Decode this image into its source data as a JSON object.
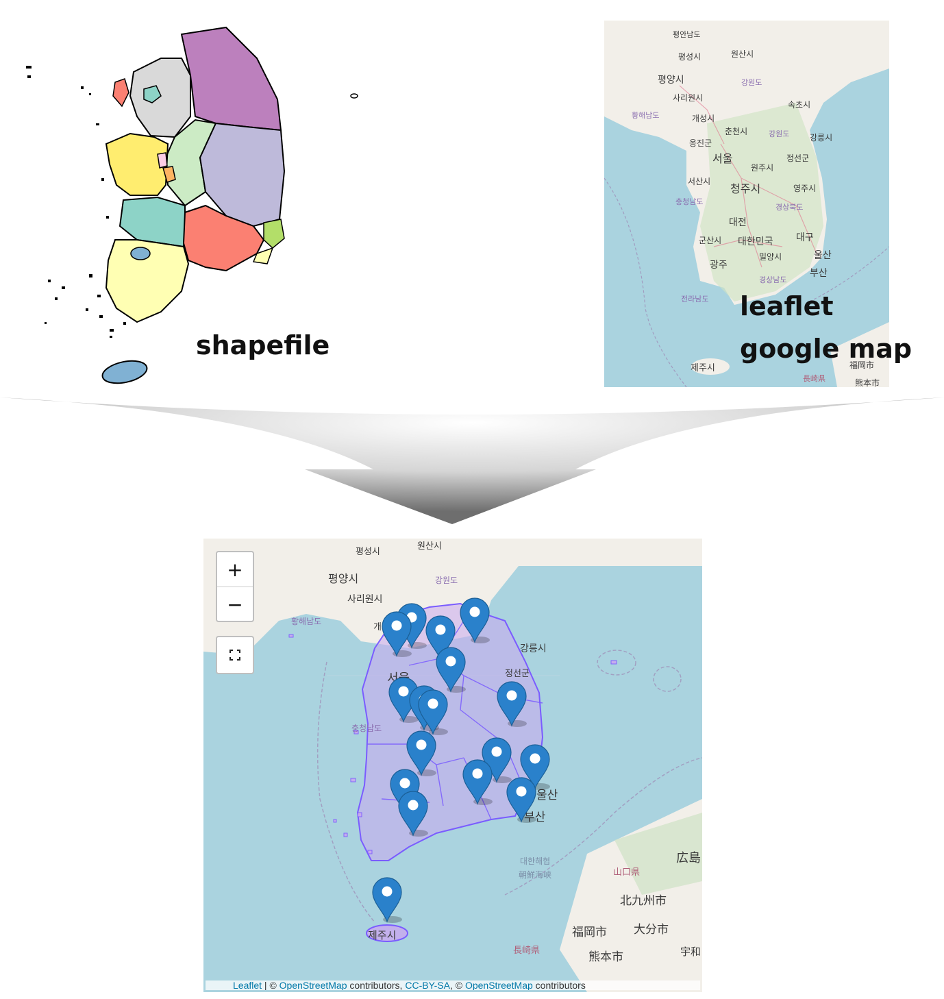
{
  "captions": {
    "shapefile": "shapefile",
    "leaflet_line1": "leaflet",
    "leaflet_line2": "google map"
  },
  "top_map_labels": [
    "평안남도",
    "평성시",
    "원산시",
    "평양시",
    "강원도",
    "사리원시",
    "황해남도",
    "개성시",
    "속초시",
    "춘천시",
    "강원도",
    "강릉시",
    "옹진군",
    "서울",
    "정선군",
    "원주시",
    "서산시",
    "청주시",
    "영주시",
    "충청남도",
    "경상북도",
    "대전",
    "군산시",
    "대한민국",
    "대구",
    "밀양시",
    "울산",
    "광주",
    "부산",
    "경상남도",
    "전라남도",
    "제주시",
    "長崎県",
    "福岡市",
    "熊本市"
  ],
  "bottom_map_labels": [
    "평성시",
    "원산시",
    "평양시",
    "강원도",
    "사리원시",
    "황해남도",
    "개성시",
    "강릉시",
    "정선군",
    "서울",
    "충청남도",
    "울산",
    "부산",
    "대한해협",
    "朝鮮海峡",
    "山口県",
    "広島",
    "北九州市",
    "福岡市",
    "大分市",
    "長崎県",
    "熊本市",
    "宇和",
    "제주시"
  ],
  "zoom_controls": {
    "zoom_in": "+",
    "zoom_out": "−"
  },
  "fullscreen_icon": "fullscreen-icon",
  "marker_icon": "map-marker-icon",
  "marker_count": 18,
  "attribution": {
    "leaflet": "Leaflet",
    "sep1": " | © ",
    "osm1": "OpenStreetMap",
    "text1": " contributors, ",
    "license": "CC-BY-SA",
    "sep2": ", © ",
    "osm2": "OpenStreetMap",
    "text2": " contributors"
  },
  "colors": {
    "sea": "#aad3df",
    "land": "#f2efe9",
    "marker": "#2a81cb",
    "region_outline": "#7a5cff",
    "region_fill": "#c9a8ef"
  }
}
